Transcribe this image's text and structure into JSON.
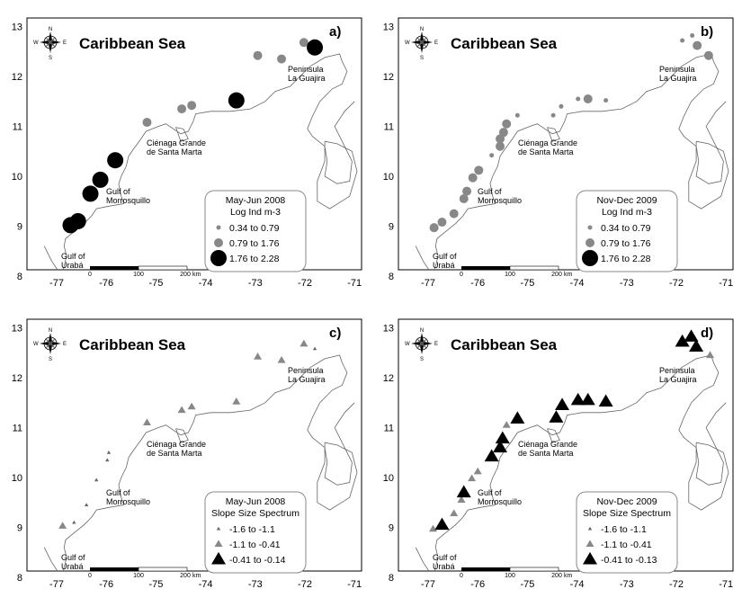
{
  "figure": {
    "sea_label": "Caribbean Sea",
    "x_ticks": [
      "-77",
      "-76",
      "-75",
      "-74",
      "-73",
      "-72",
      "-71"
    ],
    "y_ticks": [
      "8",
      "9",
      "10",
      "11",
      "12",
      "13"
    ],
    "places": {
      "peninsula": [
        "Peninsula",
        "La Guajira"
      ],
      "cienaga": [
        "Ciénaga Grande",
        "de Santa Marta"
      ],
      "morrosquillo": [
        "Gulf of",
        "Morrosquillo"
      ],
      "uraba": [
        "Gulf of",
        "Urabá"
      ]
    },
    "scalebar": {
      "labels": [
        "0",
        "100",
        "200"
      ],
      "unit": "km"
    },
    "compass": {
      "n": "N",
      "s": "S",
      "e": "E",
      "w": "W"
    }
  },
  "panels": [
    {
      "letter": "a)",
      "legend_title": [
        "May-Jun 2008",
        "Log Ind m-3"
      ],
      "legend_items": [
        "0.34  to  0.79",
        "0.79  to  1.76",
        "1.76  to  2.28"
      ],
      "symbol": "circle",
      "points": [
        {
          "lon": -76.72,
          "lat": 9.02,
          "cls": 2
        },
        {
          "lon": -76.57,
          "lat": 9.1,
          "cls": 2
        },
        {
          "lon": -76.32,
          "lat": 9.65,
          "cls": 2
        },
        {
          "lon": -76.12,
          "lat": 9.93,
          "cls": 2
        },
        {
          "lon": -75.82,
          "lat": 10.32,
          "cls": 2
        },
        {
          "lon": -75.18,
          "lat": 11.08,
          "cls": 1
        },
        {
          "lon": -74.48,
          "lat": 11.35,
          "cls": 1
        },
        {
          "lon": -74.28,
          "lat": 11.42,
          "cls": 1
        },
        {
          "lon": -73.38,
          "lat": 11.52,
          "cls": 2
        },
        {
          "lon": -72.95,
          "lat": 12.42,
          "cls": 1
        },
        {
          "lon": -72.47,
          "lat": 12.35,
          "cls": 1
        },
        {
          "lon": -72.02,
          "lat": 12.68,
          "cls": 1
        },
        {
          "lon": -71.8,
          "lat": 12.58,
          "cls": 2
        }
      ]
    },
    {
      "letter": "b)",
      "legend_title": [
        "Nov-Dec 2009",
        "Log Ind m-3"
      ],
      "legend_items": [
        "0.34  to  0.79",
        "0.79  to  1.76",
        "1.76  to  2.28"
      ],
      "symbol": "circle",
      "points": [
        {
          "lon": -76.88,
          "lat": 8.97,
          "cls": 1
        },
        {
          "lon": -76.72,
          "lat": 9.08,
          "cls": 1
        },
        {
          "lon": -76.48,
          "lat": 9.25,
          "cls": 1
        },
        {
          "lon": -76.28,
          "lat": 9.55,
          "cls": 1
        },
        {
          "lon": -76.22,
          "lat": 9.7,
          "cls": 1
        },
        {
          "lon": -76.1,
          "lat": 9.97,
          "cls": 1
        },
        {
          "lon": -75.98,
          "lat": 10.12,
          "cls": 1
        },
        {
          "lon": -75.72,
          "lat": 10.42,
          "cls": 0
        },
        {
          "lon": -75.55,
          "lat": 10.6,
          "cls": 1
        },
        {
          "lon": -75.55,
          "lat": 10.75,
          "cls": 1
        },
        {
          "lon": -75.48,
          "lat": 10.88,
          "cls": 1
        },
        {
          "lon": -75.42,
          "lat": 11.05,
          "cls": 1
        },
        {
          "lon": -75.2,
          "lat": 11.22,
          "cls": 0
        },
        {
          "lon": -74.48,
          "lat": 11.22,
          "cls": 0
        },
        {
          "lon": -74.32,
          "lat": 11.4,
          "cls": 0
        },
        {
          "lon": -73.98,
          "lat": 11.55,
          "cls": 0
        },
        {
          "lon": -73.78,
          "lat": 11.55,
          "cls": 1
        },
        {
          "lon": -73.42,
          "lat": 11.52,
          "cls": 0
        },
        {
          "lon": -71.88,
          "lat": 12.72,
          "cls": 0
        },
        {
          "lon": -71.68,
          "lat": 12.82,
          "cls": 0
        },
        {
          "lon": -71.58,
          "lat": 12.62,
          "cls": 1
        },
        {
          "lon": -71.35,
          "lat": 12.42,
          "cls": 1
        }
      ]
    },
    {
      "letter": "c)",
      "legend_title": [
        "May-Jun 2008",
        "Slope Size Spectrum"
      ],
      "legend_items": [
        "-1.6  to  -1.1",
        "-1.1  to  -0.41",
        "-0.41  to  -0.14"
      ],
      "symbol": "triangle",
      "points": [
        {
          "lon": -76.88,
          "lat": 9.03,
          "cls": 1
        },
        {
          "lon": -76.65,
          "lat": 9.1,
          "cls": 0
        },
        {
          "lon": -76.4,
          "lat": 9.45,
          "cls": 0
        },
        {
          "lon": -76.2,
          "lat": 9.95,
          "cls": 0
        },
        {
          "lon": -75.98,
          "lat": 10.35,
          "cls": 0
        },
        {
          "lon": -75.95,
          "lat": 10.5,
          "cls": 0
        },
        {
          "lon": -75.18,
          "lat": 11.1,
          "cls": 1
        },
        {
          "lon": -74.48,
          "lat": 11.35,
          "cls": 1
        },
        {
          "lon": -74.28,
          "lat": 11.42,
          "cls": 1
        },
        {
          "lon": -73.38,
          "lat": 11.52,
          "cls": 1
        },
        {
          "lon": -72.95,
          "lat": 12.42,
          "cls": 1
        },
        {
          "lon": -72.47,
          "lat": 12.35,
          "cls": 1
        },
        {
          "lon": -72.02,
          "lat": 12.68,
          "cls": 1
        },
        {
          "lon": -71.8,
          "lat": 12.58,
          "cls": 0
        }
      ]
    },
    {
      "letter": "d)",
      "legend_title": [
        "Nov-Dec 2009",
        "Slope Size Spectrum"
      ],
      "legend_items": [
        "-1.6  to  -1.1",
        "-1.1  to  -0.41",
        "-0.41  to  -0.13"
      ],
      "symbol": "triangle",
      "points": [
        {
          "lon": -76.9,
          "lat": 8.97,
          "cls": 1
        },
        {
          "lon": -76.72,
          "lat": 9.05,
          "cls": 2
        },
        {
          "lon": -76.48,
          "lat": 9.28,
          "cls": 1
        },
        {
          "lon": -76.33,
          "lat": 9.55,
          "cls": 1
        },
        {
          "lon": -76.28,
          "lat": 9.7,
          "cls": 2
        },
        {
          "lon": -76.12,
          "lat": 9.98,
          "cls": 1
        },
        {
          "lon": -76.0,
          "lat": 10.12,
          "cls": 1
        },
        {
          "lon": -75.72,
          "lat": 10.42,
          "cls": 2
        },
        {
          "lon": -75.55,
          "lat": 10.6,
          "cls": 2
        },
        {
          "lon": -75.5,
          "lat": 10.78,
          "cls": 2
        },
        {
          "lon": -75.42,
          "lat": 11.05,
          "cls": 1
        },
        {
          "lon": -75.2,
          "lat": 11.18,
          "cls": 2
        },
        {
          "lon": -74.42,
          "lat": 11.2,
          "cls": 2
        },
        {
          "lon": -74.3,
          "lat": 11.45,
          "cls": 2
        },
        {
          "lon": -73.98,
          "lat": 11.55,
          "cls": 2
        },
        {
          "lon": -73.78,
          "lat": 11.55,
          "cls": 2
        },
        {
          "lon": -73.42,
          "lat": 11.52,
          "cls": 2
        },
        {
          "lon": -71.88,
          "lat": 12.72,
          "cls": 2
        },
        {
          "lon": -71.7,
          "lat": 12.82,
          "cls": 2
        },
        {
          "lon": -71.6,
          "lat": 12.62,
          "cls": 2
        },
        {
          "lon": -71.32,
          "lat": 12.45,
          "cls": 1
        }
      ]
    }
  ]
}
